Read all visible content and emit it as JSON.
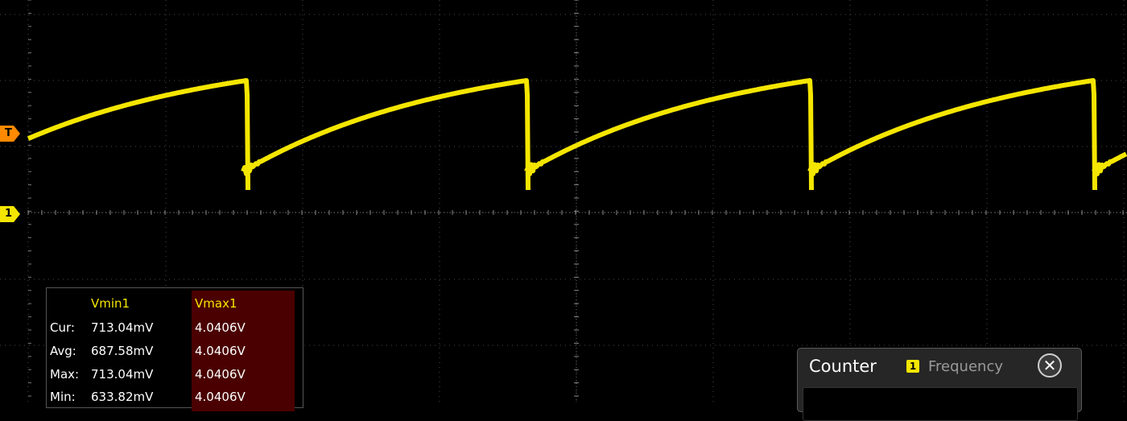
{
  "colors": {
    "trace": "#f5e600",
    "grid": "#4a4a4a",
    "trigger_marker": "#ff8a00",
    "channel_marker": "#f5e600",
    "highlight": "#4a0000"
  },
  "markers": {
    "trigger_label": "T",
    "channel_label": "1"
  },
  "measurements": {
    "headers": [
      "Vmin1",
      "Vmax1"
    ],
    "rows": [
      {
        "label": "Cur:",
        "values": [
          "713.04mV",
          "4.0406V"
        ]
      },
      {
        "label": "Avg:",
        "values": [
          "687.58mV",
          "4.0406V"
        ]
      },
      {
        "label": "Max:",
        "values": [
          "713.04mV",
          "4.0406V"
        ]
      },
      {
        "label": "Min:",
        "values": [
          "633.82mV",
          "4.0406V"
        ]
      }
    ]
  },
  "counter": {
    "title": "Counter",
    "channel": "1",
    "mode": "Frequency",
    "close_icon": "close-icon"
  }
}
